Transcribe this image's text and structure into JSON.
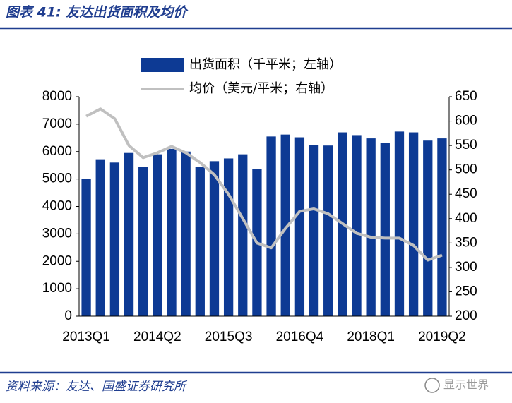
{
  "header": {
    "title": "图表 41: 友达出货面积及均价"
  },
  "chart_data": {
    "type": "bar-line",
    "categories": [
      "2013Q1",
      null,
      null,
      null,
      null,
      "2014Q2",
      null,
      null,
      null,
      null,
      "2015Q3",
      null,
      null,
      null,
      null,
      "2016Q4",
      null,
      null,
      null,
      null,
      "2018Q1",
      null,
      null,
      null,
      null,
      "2019Q2"
    ],
    "series": [
      {
        "name": "出货面积（千平米；左轴）",
        "type": "bar",
        "color": "#0d3a94",
        "values": [
          5000,
          5720,
          5600,
          5950,
          5450,
          5900,
          6100,
          6000,
          5450,
          5650,
          5750,
          5900,
          5350,
          6550,
          6620,
          6520,
          6250,
          6220,
          6700,
          6600,
          6480,
          6320,
          6730,
          6700,
          6400,
          6480
        ]
      },
      {
        "name": "均价（美元/平米；右轴）",
        "type": "line",
        "axis": "y2",
        "color": "#c0c0c0",
        "values": [
          610,
          625,
          605,
          550,
          525,
          535,
          548,
          535,
          515,
          490,
          450,
          400,
          350,
          340,
          380,
          415,
          420,
          410,
          390,
          370,
          362,
          360,
          360,
          345,
          315,
          325
        ]
      }
    ],
    "ylim": [
      0,
      8000
    ],
    "yticks": [
      0,
      1000,
      2000,
      3000,
      4000,
      5000,
      6000,
      7000,
      8000
    ],
    "y2lim": [
      200,
      650
    ],
    "y2ticks": [
      200,
      250,
      300,
      350,
      400,
      450,
      500,
      550,
      600,
      650
    ]
  },
  "footer": {
    "source": "资料来源：友达、国盛证券研究所",
    "watermark": "显示世界"
  }
}
